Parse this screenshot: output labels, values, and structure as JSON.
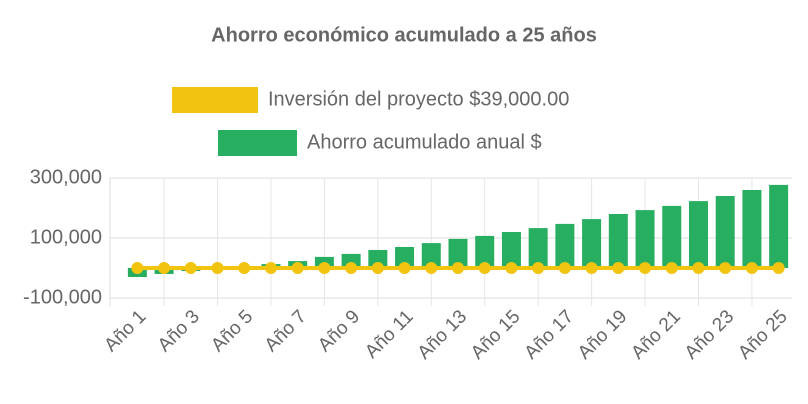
{
  "chart_data": {
    "type": "bar",
    "title": "Ahorro económico acumulado a 25 años",
    "categories": [
      "Año 1",
      null,
      "Año 3",
      null,
      "Año 5",
      null,
      "Año 7",
      null,
      "Año 9",
      null,
      "Año 11",
      null,
      "Año 13",
      null,
      "Año 15",
      null,
      "Año 17",
      null,
      "Año 19",
      null,
      "Año 21",
      null,
      "Año 23",
      null,
      "Año 25"
    ],
    "series": [
      {
        "name": "Inversión del proyecto $39,000.00",
        "type": "line",
        "color": "#f1c40f",
        "values": [
          0,
          0,
          0,
          0,
          0,
          0,
          0,
          0,
          0,
          0,
          0,
          0,
          0,
          0,
          0,
          0,
          0,
          0,
          0,
          0,
          0,
          0,
          0,
          0,
          0
        ]
      },
      {
        "name": "Ahorro acumulado anual $",
        "type": "bar",
        "color": "#27ae60",
        "values": [
          -30000,
          -20000,
          -10000,
          0,
          3000,
          13000,
          23000,
          37000,
          47000,
          60000,
          70000,
          83000,
          97000,
          107000,
          120000,
          133000,
          147000,
          163000,
          180000,
          193000,
          207000,
          223000,
          240000,
          260000,
          277000
        ]
      }
    ],
    "ylim": [
      -100000,
      300000
    ],
    "yticks": [
      {
        "value": -100000,
        "label": "-100,000"
      },
      {
        "value": 100000,
        "label": "100,000"
      },
      {
        "value": 300000,
        "label": "300,000"
      }
    ],
    "grid": true
  }
}
